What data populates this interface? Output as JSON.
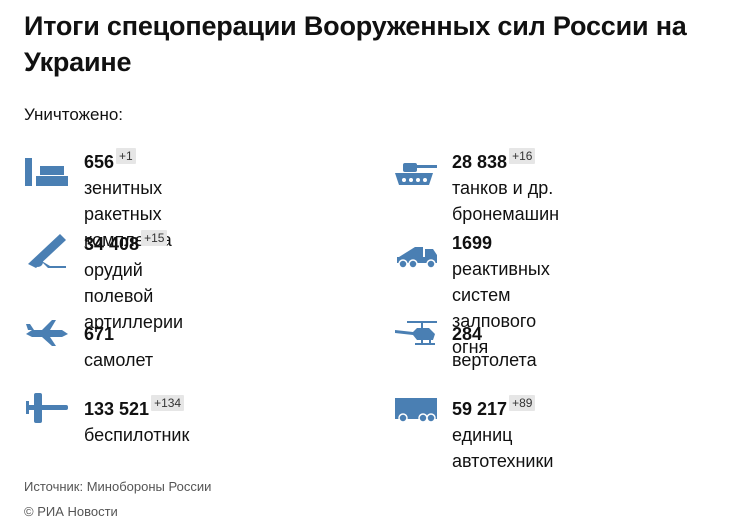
{
  "title": "Итоги спецоперации Вооруженных сил России на Украине",
  "subtitle": "Уничтожено:",
  "colors": {
    "icon": "#4a7fb3",
    "delta_bg": "#e6e6e6"
  },
  "items": [
    {
      "icon": "air-defense-icon",
      "number": "656",
      "delta": "+1",
      "label_line1": "зенитных ракетных",
      "label_line2": "комплекса"
    },
    {
      "icon": "tank-icon",
      "number": "28 838",
      "delta": "+16",
      "label_line1": "танков и др.",
      "label_line2": "бронемашин"
    },
    {
      "icon": "artillery-icon",
      "number": "34 408",
      "delta": "+15",
      "label_line1": "орудий полевой",
      "label_line2": "артиллерии"
    },
    {
      "icon": "mlrs-icon",
      "number": "1699",
      "delta": "",
      "label_line1": "реактивных систем",
      "label_line2": "залпового огня"
    },
    {
      "icon": "airplane-icon",
      "number": "671",
      "delta": "",
      "label_line1": "самолет",
      "label_line2": ""
    },
    {
      "icon": "helicopter-icon",
      "number": "284",
      "delta": "",
      "label_line1": "вертолета",
      "label_line2": ""
    },
    {
      "icon": "drone-icon",
      "number": "133 521",
      "delta": "+134",
      "label_line1": "беспилотник",
      "label_line2": ""
    },
    {
      "icon": "truck-icon",
      "number": "59 217",
      "delta": "+89",
      "label_line1": "единиц автотехники",
      "label_line2": ""
    }
  ],
  "footer": {
    "source": "Источник: Минобороны России",
    "copyright": "© РИА Новости"
  }
}
